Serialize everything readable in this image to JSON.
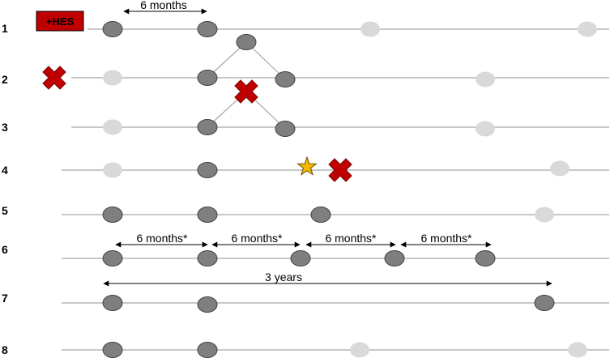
{
  "colors": {
    "line": "#a6a6a6",
    "attended": "#7f7f7f",
    "missed": "#d9d9d9",
    "cross": "#c00000",
    "star": "#f5b800",
    "hes_box": "#c00000"
  },
  "hes_badge": "+HES",
  "rows": [
    {
      "label": "1"
    },
    {
      "label": "2"
    },
    {
      "label": "3"
    },
    {
      "label": "4"
    },
    {
      "label": "5"
    },
    {
      "label": "6"
    },
    {
      "label": "7"
    },
    {
      "label": "8"
    }
  ],
  "spans": [
    {
      "label": "6 months"
    },
    {
      "label": "6 months*"
    },
    {
      "label": "6 months*"
    },
    {
      "label": "6 months*"
    },
    {
      "label": "6 months*"
    },
    {
      "label": "3 years"
    }
  ]
}
